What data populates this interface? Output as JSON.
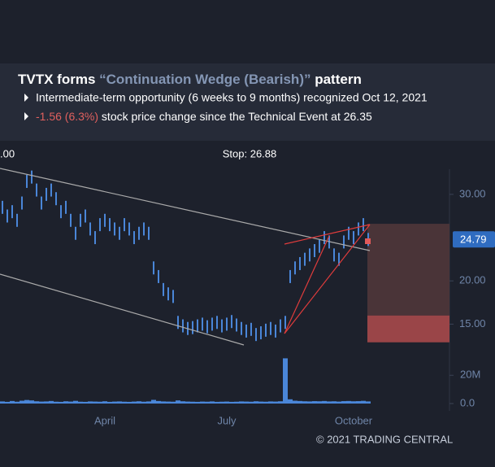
{
  "header": {
    "title_start": "TVTX forms ",
    "title_pattern": "“Continuation Wedge (Bearish)”",
    "title_end": " pattern",
    "bullet_1": "Intermediate-term opportunity (6 weeks to 9 months) recognized Oct 12, 2021",
    "bullet_2_change": "-1.56 (6.3%)",
    "bullet_2_text": " stock price change since the Technical Event at 26.35"
  },
  "footer": "© 2021 TRADING CENTRAL",
  "chart_data": [
    {
      "type": "price",
      "left_label": ".00",
      "stop": {
        "value": 26.88,
        "label": "Stop: 26.88"
      },
      "upper_zone": [
        16.0,
        26.6
      ],
      "lower_zone": [
        12.9,
        16.0
      ],
      "color": "#4a86d8",
      "values": [
        28.5,
        27.5,
        28,
        27,
        29,
        31.5,
        32,
        30.5,
        29,
        30,
        30.5,
        29.5,
        28,
        28.5,
        27,
        25.5,
        27,
        27.5,
        26,
        25,
        26.5,
        27,
        26.5,
        26,
        25.5,
        26.5,
        26,
        25,
        25.5,
        26,
        25.5,
        21.5,
        20.5,
        19,
        18.5,
        18.2,
        15.2,
        14.8,
        14.5,
        14.6,
        14.8,
        15,
        14.7,
        15,
        15.2,
        14.8,
        15,
        15.3,
        14.9,
        14.5,
        14.2,
        14.4,
        13.8,
        14,
        14.3,
        14.5,
        14.2,
        14.8,
        15.2,
        20.5,
        21.5,
        22,
        22.5,
        23,
        23.5,
        24,
        25,
        24.5,
        23,
        22.5,
        24.5,
        25.5,
        25,
        26,
        26.5,
        24.79
      ],
      "ylim": [
        12.5,
        33
      ],
      "yticks": [
        {
          "value": 15,
          "label": "15.00"
        },
        {
          "value": 20,
          "label": "20.00"
        },
        {
          "value": 30,
          "label": "30.00"
        }
      ],
      "xticks": [
        {
          "value": 21,
          "label": "April"
        },
        {
          "value": 46,
          "label": "July"
        },
        {
          "value": 72,
          "label": "October"
        }
      ]
    },
    {
      "type": "volume",
      "color": "#4a86d8",
      "values": [
        1.5,
        1.2,
        1.8,
        1.3,
        2,
        2.5,
        2.2,
        1.6,
        1.4,
        1.5,
        1.8,
        1.3,
        1.2,
        1.6,
        1.4,
        1.9,
        1.3,
        1.2,
        1.5,
        1.4,
        1.3,
        1.6,
        1.2,
        1.4,
        1.5,
        1.3,
        1.2,
        1.4,
        1.6,
        1.3,
        1.5,
        2.6,
        1.8,
        1.5,
        1.4,
        1.3,
        2.2,
        1.6,
        1.4,
        1.3,
        1.2,
        1.4,
        1.3,
        1.5,
        1.2,
        1.3,
        1.4,
        1.2,
        1.3,
        1.5,
        1.4,
        1.3,
        1.6,
        1.4,
        1.3,
        1.5,
        1.4,
        1.6,
        32,
        3,
        2,
        1.8,
        1.6,
        1.5,
        1.7,
        1.6,
        1.8,
        1.5,
        1.6,
        1.4,
        1.7,
        1.8,
        1.6,
        1.7,
        1.9,
        1.5
      ],
      "ylim": [
        0,
        38
      ],
      "yticks": [
        {
          "value": 0,
          "label": "0.0"
        },
        {
          "value": 20,
          "label": "20M"
        }
      ]
    }
  ]
}
